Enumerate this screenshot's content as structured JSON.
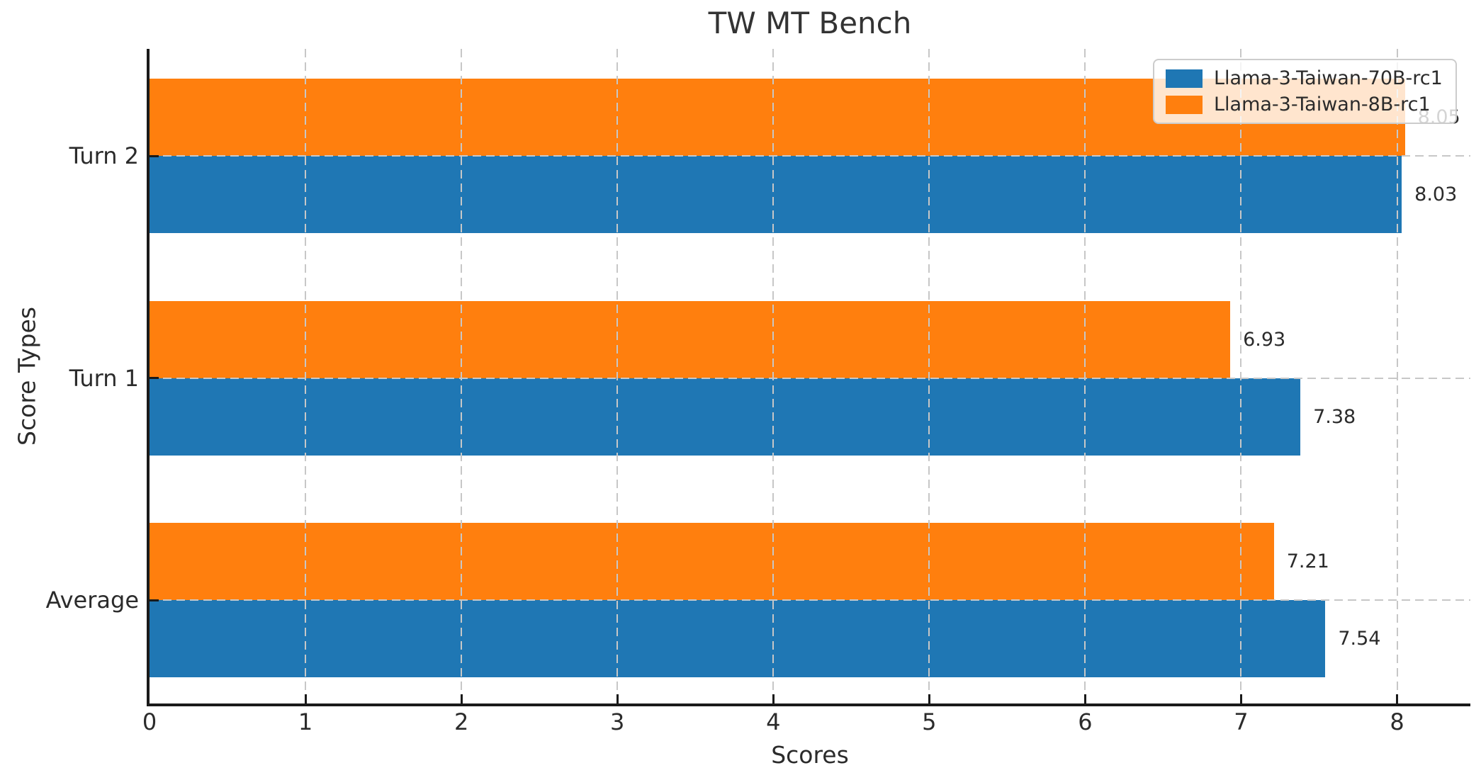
{
  "chart_data": {
    "type": "bar",
    "orientation": "horizontal",
    "title": "TW MT Bench",
    "xlabel": "Scores",
    "ylabel": "Score Types",
    "categories_top_to_bottom": [
      "Turn 2",
      "Turn 1",
      "Average"
    ],
    "series": [
      {
        "name": "Llama-3-Taiwan-70B-rc1",
        "color": "#1f77b4",
        "values": [
          8.03,
          7.38,
          7.54
        ]
      },
      {
        "name": "Llama-3-Taiwan-8B-rc1",
        "color": "#ff7f0e",
        "values": [
          8.05,
          6.93,
          7.21
        ]
      }
    ],
    "bar_value_labels": [
      [
        "8.03",
        "7.38",
        "7.54"
      ],
      [
        "8.05",
        "6.93",
        "7.21"
      ]
    ],
    "xlim": [
      0,
      8.47
    ],
    "x_ticks": [
      0,
      1,
      2,
      3,
      4,
      5,
      6,
      7,
      8
    ],
    "grid": {
      "style": "dashed",
      "color": "#c7c7c7",
      "above_bars": true
    },
    "legend": {
      "position": "upper-right",
      "bg": "rgba(255,255,255,0.8)",
      "border_color": "#cccccc"
    },
    "colors": {
      "axis": "#1a1a1a",
      "text": "#2b2b2b",
      "title": "#333333",
      "background": "#ffffff"
    }
  }
}
